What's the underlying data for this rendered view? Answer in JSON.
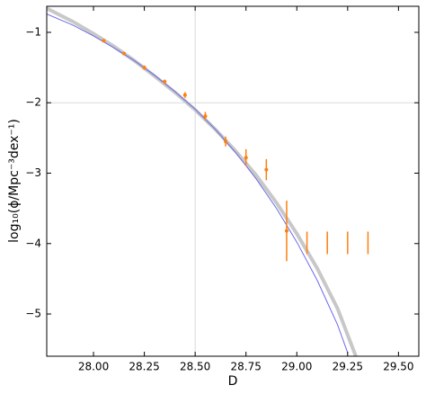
{
  "chart_data": {
    "type": "scatter",
    "xlabel": "D",
    "ylabel": "log₁₀(ϕ/Mpc⁻³dex⁻¹)",
    "xlim": [
      27.77,
      29.6
    ],
    "ylim": [
      -5.6,
      -0.63
    ],
    "xticks": [
      {
        "value": 28.0,
        "label": "28.00"
      },
      {
        "value": 28.25,
        "label": "28.25"
      },
      {
        "value": 28.5,
        "label": "28.50"
      },
      {
        "value": 28.75,
        "label": "28.75"
      },
      {
        "value": 29.0,
        "label": "29.00"
      },
      {
        "value": 29.25,
        "label": "29.25"
      },
      {
        "value": 29.5,
        "label": "29.50"
      }
    ],
    "yticks": [
      {
        "value": -1,
        "label": "−1"
      },
      {
        "value": -2,
        "label": "−2"
      },
      {
        "value": -3,
        "label": "−3"
      },
      {
        "value": -4,
        "label": "−4"
      },
      {
        "value": -5,
        "label": "−5"
      }
    ],
    "vline": 28.5,
    "hline": -2,
    "curves": [
      {
        "color": "#c8c8c8",
        "x": [
          27.77,
          27.9,
          28.0,
          28.1,
          28.2,
          28.3,
          28.4,
          28.5,
          28.6,
          28.7,
          28.8,
          28.9,
          29.0,
          29.1,
          29.2,
          29.29
        ],
        "y": [
          -0.66,
          -0.85,
          -1.02,
          -1.2,
          -1.4,
          -1.62,
          -1.85,
          -2.1,
          -2.38,
          -2.69,
          -3.03,
          -3.42,
          -3.86,
          -4.35,
          -4.92,
          -5.6
        ]
      },
      {
        "color": "#6a6ae8",
        "x": [
          27.77,
          27.9,
          28.0,
          28.1,
          28.2,
          28.3,
          28.4,
          28.5,
          28.6,
          28.7,
          28.8,
          28.9,
          29.0,
          29.1,
          29.2,
          29.25
        ],
        "y": [
          -0.74,
          -0.9,
          -1.05,
          -1.22,
          -1.4,
          -1.61,
          -1.84,
          -2.09,
          -2.38,
          -2.71,
          -3.08,
          -3.5,
          -3.98,
          -4.52,
          -5.15,
          -5.55
        ]
      }
    ],
    "points": {
      "color": "#ff7f0e",
      "x": [
        28.05,
        28.15,
        28.25,
        28.35,
        28.45,
        28.55,
        28.65,
        28.75,
        28.85,
        28.95
      ],
      "y": [
        -1.12,
        -1.3,
        -1.5,
        -1.7,
        -1.89,
        -2.19,
        -2.55,
        -2.78,
        -2.95,
        -3.82
      ],
      "yerr": [
        0.02,
        0.02,
        0.03,
        0.03,
        0.04,
        0.06,
        0.07,
        0.12,
        0.15,
        0.43
      ]
    },
    "limits": {
      "color": "#ff7f0e",
      "x": [
        29.05,
        29.15,
        29.25,
        29.35
      ],
      "lower": [
        -4.15,
        -4.15,
        -4.15,
        -4.15
      ],
      "upper": [
        -3.83,
        -3.83,
        -3.83,
        -3.83
      ]
    }
  }
}
